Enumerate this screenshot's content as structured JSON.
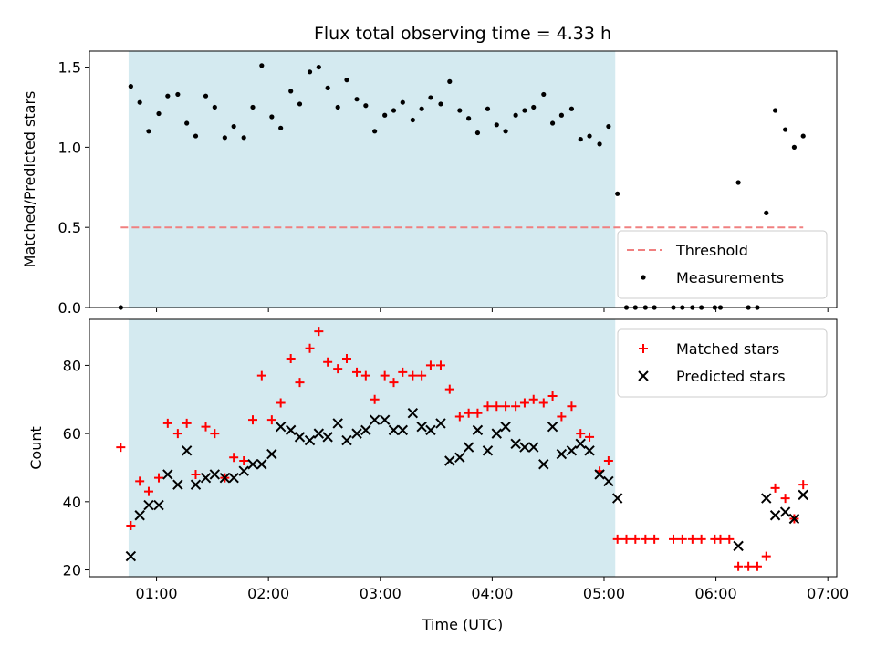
{
  "chart_data": {
    "title": "Flux total observing time = 4.33 h",
    "xlabel": "Time (UTC)",
    "x_ticks": [
      "01:00",
      "02:00",
      "03:00",
      "04:00",
      "05:00",
      "06:00",
      "07:00"
    ],
    "x_tick_hours": [
      1,
      2,
      3,
      4,
      5,
      6,
      7
    ],
    "xlim_hours": [
      0.4,
      7.08
    ],
    "observing_window_hours": [
      0.75,
      5.1
    ],
    "observing_window_color": "#d4eaf0",
    "panels": [
      {
        "type": "scatter",
        "ylabel": "Matched/Predicted stars",
        "ylim": [
          0,
          1.6
        ],
        "y_ticks": [
          0.0,
          0.5,
          1.0,
          1.5
        ],
        "y_tick_labels": [
          "0.0",
          "0.5",
          "1.0",
          "1.5"
        ],
        "legend": {
          "placement": "lower right"
        },
        "threshold": {
          "name": "Threshold",
          "value": 0.5,
          "x_range": [
            0.68,
            6.78
          ],
          "color": "#f08080"
        },
        "series": [
          {
            "name": "Measurements",
            "marker": "dot",
            "color": "#000000",
            "points": [
              [
                0.68,
                0.0
              ],
              [
                0.77,
                1.38
              ],
              [
                0.85,
                1.28
              ],
              [
                0.93,
                1.1
              ],
              [
                1.02,
                1.21
              ],
              [
                1.1,
                1.32
              ],
              [
                1.19,
                1.33
              ],
              [
                1.27,
                1.15
              ],
              [
                1.35,
                1.07
              ],
              [
                1.44,
                1.32
              ],
              [
                1.52,
                1.25
              ],
              [
                1.61,
                1.06
              ],
              [
                1.69,
                1.13
              ],
              [
                1.78,
                1.06
              ],
              [
                1.86,
                1.25
              ],
              [
                1.94,
                1.51
              ],
              [
                2.03,
                1.19
              ],
              [
                2.11,
                1.12
              ],
              [
                2.2,
                1.35
              ],
              [
                2.28,
                1.27
              ],
              [
                2.37,
                1.47
              ],
              [
                2.45,
                1.5
              ],
              [
                2.53,
                1.37
              ],
              [
                2.62,
                1.25
              ],
              [
                2.7,
                1.42
              ],
              [
                2.79,
                1.3
              ],
              [
                2.87,
                1.26
              ],
              [
                2.95,
                1.1
              ],
              [
                3.04,
                1.2
              ],
              [
                3.12,
                1.23
              ],
              [
                3.2,
                1.28
              ],
              [
                3.29,
                1.17
              ],
              [
                3.37,
                1.24
              ],
              [
                3.45,
                1.31
              ],
              [
                3.54,
                1.27
              ],
              [
                3.62,
                1.41
              ],
              [
                3.71,
                1.23
              ],
              [
                3.79,
                1.18
              ],
              [
                3.87,
                1.09
              ],
              [
                3.96,
                1.24
              ],
              [
                4.04,
                1.14
              ],
              [
                4.12,
                1.1
              ],
              [
                4.21,
                1.2
              ],
              [
                4.29,
                1.23
              ],
              [
                4.37,
                1.25
              ],
              [
                4.46,
                1.33
              ],
              [
                4.54,
                1.15
              ],
              [
                4.62,
                1.2
              ],
              [
                4.71,
                1.24
              ],
              [
                4.79,
                1.05
              ],
              [
                4.87,
                1.07
              ],
              [
                4.96,
                1.02
              ],
              [
                5.04,
                1.13
              ],
              [
                5.12,
                0.71
              ],
              [
                5.2,
                0.0
              ],
              [
                5.28,
                0.0
              ],
              [
                5.37,
                0.0
              ],
              [
                5.45,
                0.0
              ],
              [
                5.62,
                0.0
              ],
              [
                5.7,
                0.0
              ],
              [
                5.79,
                0.0
              ],
              [
                5.87,
                0.0
              ],
              [
                5.99,
                0.0
              ],
              [
                6.04,
                0.0
              ],
              [
                6.2,
                0.78
              ],
              [
                6.29,
                0.0
              ],
              [
                6.37,
                0.0
              ],
              [
                6.45,
                0.59
              ],
              [
                6.53,
                1.23
              ],
              [
                6.62,
                1.11
              ],
              [
                6.7,
                1.0
              ],
              [
                6.78,
                1.07
              ]
            ]
          }
        ]
      },
      {
        "type": "scatter",
        "ylabel": "Count",
        "ylim": [
          18,
          93.5
        ],
        "y_ticks": [
          20,
          40,
          60,
          80
        ],
        "y_tick_labels": [
          "20",
          "40",
          "60",
          "80"
        ],
        "legend": {
          "placement": "upper right"
        },
        "series": [
          {
            "name": "Matched stars",
            "marker": "plus",
            "color": "#ff0000",
            "points": [
              [
                0.68,
                56
              ],
              [
                0.77,
                33
              ],
              [
                0.85,
                46
              ],
              [
                0.93,
                43
              ],
              [
                1.02,
                47
              ],
              [
                1.1,
                63
              ],
              [
                1.19,
                60
              ],
              [
                1.27,
                63
              ],
              [
                1.35,
                48
              ],
              [
                1.44,
                62
              ],
              [
                1.52,
                60
              ],
              [
                1.61,
                47
              ],
              [
                1.69,
                53
              ],
              [
                1.78,
                52
              ],
              [
                1.86,
                64
              ],
              [
                1.94,
                77
              ],
              [
                2.03,
                64
              ],
              [
                2.11,
                69
              ],
              [
                2.2,
                82
              ],
              [
                2.28,
                75
              ],
              [
                2.37,
                85
              ],
              [
                2.45,
                90
              ],
              [
                2.53,
                81
              ],
              [
                2.62,
                79
              ],
              [
                2.7,
                82
              ],
              [
                2.79,
                78
              ],
              [
                2.87,
                77
              ],
              [
                2.95,
                70
              ],
              [
                3.04,
                77
              ],
              [
                3.12,
                75
              ],
              [
                3.2,
                78
              ],
              [
                3.29,
                77
              ],
              [
                3.37,
                77
              ],
              [
                3.45,
                80
              ],
              [
                3.54,
                80
              ],
              [
                3.62,
                73
              ],
              [
                3.71,
                65
              ],
              [
                3.79,
                66
              ],
              [
                3.87,
                66
              ],
              [
                3.96,
                68
              ],
              [
                4.04,
                68
              ],
              [
                4.12,
                68
              ],
              [
                4.21,
                68
              ],
              [
                4.29,
                69
              ],
              [
                4.37,
                70
              ],
              [
                4.46,
                69
              ],
              [
                4.54,
                71
              ],
              [
                4.62,
                65
              ],
              [
                4.71,
                68
              ],
              [
                4.79,
                60
              ],
              [
                4.87,
                59
              ],
              [
                4.96,
                49
              ],
              [
                5.04,
                52
              ],
              [
                5.12,
                29
              ],
              [
                5.2,
                29
              ],
              [
                5.28,
                29
              ],
              [
                5.37,
                29
              ],
              [
                5.45,
                29
              ],
              [
                5.62,
                29
              ],
              [
                5.7,
                29
              ],
              [
                5.79,
                29
              ],
              [
                5.87,
                29
              ],
              [
                5.99,
                29
              ],
              [
                6.04,
                29
              ],
              [
                6.12,
                29
              ],
              [
                6.2,
                21
              ],
              [
                6.29,
                21
              ],
              [
                6.37,
                21
              ],
              [
                6.45,
                24
              ],
              [
                6.53,
                44
              ],
              [
                6.62,
                41
              ],
              [
                6.7,
                35
              ],
              [
                6.78,
                45
              ]
            ]
          },
          {
            "name": "Predicted stars",
            "marker": "x",
            "color": "#000000",
            "points": [
              [
                0.77,
                24
              ],
              [
                0.85,
                36
              ],
              [
                0.93,
                39
              ],
              [
                1.02,
                39
              ],
              [
                1.1,
                48
              ],
              [
                1.19,
                45
              ],
              [
                1.27,
                55
              ],
              [
                1.35,
                45
              ],
              [
                1.44,
                47
              ],
              [
                1.52,
                48
              ],
              [
                1.61,
                47
              ],
              [
                1.69,
                47
              ],
              [
                1.78,
                49
              ],
              [
                1.86,
                51
              ],
              [
                1.94,
                51
              ],
              [
                2.03,
                54
              ],
              [
                2.11,
                62
              ],
              [
                2.2,
                61
              ],
              [
                2.28,
                59
              ],
              [
                2.37,
                58
              ],
              [
                2.45,
                60
              ],
              [
                2.53,
                59
              ],
              [
                2.62,
                63
              ],
              [
                2.7,
                58
              ],
              [
                2.79,
                60
              ],
              [
                2.87,
                61
              ],
              [
                2.95,
                64
              ],
              [
                3.04,
                64
              ],
              [
                3.12,
                61
              ],
              [
                3.2,
                61
              ],
              [
                3.29,
                66
              ],
              [
                3.37,
                62
              ],
              [
                3.45,
                61
              ],
              [
                3.54,
                63
              ],
              [
                3.62,
                52
              ],
              [
                3.71,
                53
              ],
              [
                3.79,
                56
              ],
              [
                3.87,
                61
              ],
              [
                3.96,
                55
              ],
              [
                4.04,
                60
              ],
              [
                4.12,
                62
              ],
              [
                4.21,
                57
              ],
              [
                4.29,
                56
              ],
              [
                4.37,
                56
              ],
              [
                4.46,
                51
              ],
              [
                4.54,
                62
              ],
              [
                4.62,
                54
              ],
              [
                4.71,
                55
              ],
              [
                4.79,
                57
              ],
              [
                4.87,
                55
              ],
              [
                4.96,
                48
              ],
              [
                5.04,
                46
              ],
              [
                5.12,
                41
              ],
              [
                6.2,
                27
              ],
              [
                6.45,
                41
              ],
              [
                6.53,
                36
              ],
              [
                6.62,
                37
              ],
              [
                6.7,
                35
              ],
              [
                6.78,
                42
              ]
            ]
          }
        ]
      }
    ]
  }
}
